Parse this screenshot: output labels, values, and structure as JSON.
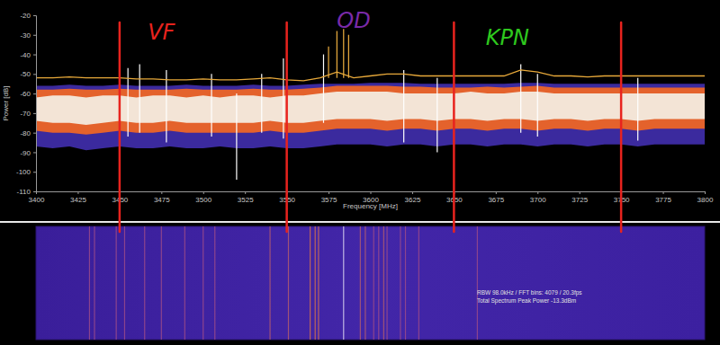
{
  "chart_data": [
    {
      "type": "line",
      "x_label": "Frequency [MHz]",
      "y_label": "Power [dB]",
      "xlim": [
        3400,
        3800
      ],
      "xticks": [
        3400,
        3425,
        3450,
        3475,
        3500,
        3525,
        3550,
        3575,
        3600,
        3625,
        3650,
        3675,
        3700,
        3725,
        3750,
        3775,
        3800
      ],
      "ylim": [
        -110,
        -20
      ],
      "yticks": [
        -110,
        -100,
        -90,
        -80,
        -70,
        -60,
        -50,
        -40,
        -30,
        -20
      ],
      "x": [
        3400,
        3410,
        3420,
        3430,
        3440,
        3450,
        3460,
        3470,
        3480,
        3490,
        3500,
        3510,
        3520,
        3530,
        3540,
        3550,
        3560,
        3570,
        3580,
        3590,
        3600,
        3610,
        3620,
        3630,
        3640,
        3650,
        3660,
        3670,
        3680,
        3690,
        3700,
        3710,
        3720,
        3730,
        3740,
        3750,
        3760,
        3770,
        3780,
        3790,
        3800
      ],
      "series": [
        {
          "type": "area",
          "color": "#3b2a9e",
          "values": [
            -56,
            -56,
            -55.5,
            -56,
            -56,
            -55.5,
            -56,
            -56,
            -56,
            -55.5,
            -56,
            -56,
            -56,
            -55.5,
            -56,
            -56,
            -55.5,
            -55,
            -55,
            -55,
            -54.5,
            -54.5,
            -54.5,
            -55,
            -55,
            -55,
            -55,
            -55,
            -55,
            -54.5,
            -54.5,
            -55,
            -55,
            -55,
            -55,
            -55,
            -55,
            -55,
            -55,
            -55,
            -55
          ],
          "low": [
            -87,
            -88,
            -87,
            -89,
            -88,
            -87,
            -88,
            -88,
            -87,
            -88,
            -88,
            -87,
            -88,
            -88,
            -87,
            -88,
            -88,
            -87,
            -86,
            -86,
            -86,
            -87,
            -86,
            -86,
            -87,
            -86,
            -86,
            -87,
            -86,
            -86,
            -87,
            -86,
            -86,
            -87,
            -86,
            -86,
            -87,
            -86,
            -86,
            -86,
            -86
          ]
        },
        {
          "type": "area",
          "color": "#e4622c",
          "values": [
            -58,
            -58,
            -57.5,
            -58,
            -58,
            -57.5,
            -58,
            -58,
            -58,
            -57.5,
            -58,
            -58,
            -58,
            -57.5,
            -58,
            -58,
            -57.5,
            -57,
            -56,
            -56,
            -56,
            -56,
            -56.5,
            -56.5,
            -57,
            -57,
            -57,
            -56.5,
            -57,
            -56.5,
            -56,
            -57,
            -57,
            -57,
            -57,
            -57,
            -57,
            -57,
            -57,
            -57,
            -57
          ],
          "low": [
            -79,
            -80,
            -80,
            -81,
            -80,
            -79,
            -80,
            -80,
            -79,
            -80,
            -80,
            -80,
            -80,
            -80,
            -79,
            -80,
            -80,
            -79,
            -78,
            -78,
            -78,
            -79,
            -78,
            -78,
            -79,
            -78,
            -78,
            -79,
            -78,
            -78,
            -79,
            -78,
            -78,
            -79,
            -78,
            -78,
            -79,
            -78,
            -78,
            -78,
            -78
          ]
        },
        {
          "type": "area",
          "color": "#f3e4d6",
          "values": [
            -62,
            -61,
            -61,
            -62,
            -61,
            -61,
            -62,
            -61,
            -61,
            -62,
            -61,
            -62,
            -61,
            -61,
            -62,
            -61,
            -61,
            -60,
            -59,
            -59,
            -59,
            -59,
            -60,
            -60,
            -60,
            -60,
            -59,
            -60,
            -60,
            -59,
            -59,
            -60,
            -60,
            -60,
            -60,
            -60,
            -60,
            -60,
            -60,
            -60,
            -60
          ],
          "low": [
            -74,
            -75,
            -75,
            -76,
            -75,
            -74,
            -75,
            -75,
            -74,
            -75,
            -75,
            -75,
            -75,
            -75,
            -74,
            -75,
            -75,
            -74,
            -73,
            -73,
            -73,
            -74,
            -73,
            -73,
            -74,
            -73,
            -73,
            -74,
            -73,
            -73,
            -74,
            -73,
            -73,
            -74,
            -73,
            -73,
            -74,
            -73,
            -73,
            -73,
            -73
          ]
        },
        {
          "type": "stem",
          "color": "#ffffff",
          "x": [
            3455,
            3462,
            3478,
            3505,
            3520,
            3535,
            3548,
            3572,
            3620,
            3640,
            3690,
            3700,
            3760
          ],
          "values": [
            -47,
            -45,
            -48,
            -50,
            -60,
            -50,
            -42,
            -40,
            -48,
            -52,
            -45,
            -50,
            -52
          ],
          "low": [
            -82,
            -80,
            -85,
            -82,
            -104,
            -80,
            -83,
            -75,
            -85,
            -90,
            -80,
            -82,
            -84
          ]
        },
        {
          "type": "line",
          "color": "#e8a93a",
          "values": [
            -52,
            -52,
            -51.5,
            -52,
            -52,
            -52,
            -52.5,
            -52.5,
            -53,
            -53,
            -52.5,
            -53,
            -53,
            -52.5,
            -52,
            -53,
            -53.5,
            -52,
            -49,
            -52,
            -51,
            -50,
            -50,
            -51,
            -51,
            -51,
            -51,
            -51,
            -51,
            -48,
            -49,
            -51,
            -51,
            -51.5,
            -51,
            -51,
            -51,
            -51,
            -51,
            -51,
            -51
          ]
        },
        {
          "type": "stem",
          "color": "#f0b040",
          "x": [
            3575,
            3580,
            3584,
            3587
          ],
          "values": [
            -36,
            -28,
            -27,
            -30
          ],
          "low": [
            -52,
            -52,
            -52,
            -52
          ]
        }
      ],
      "vlines": {
        "x": [
          3450,
          3550,
          3650,
          3750
        ],
        "color": "#e8231e"
      },
      "annotations": [
        {
          "text": "VF",
          "x": 3475,
          "y": -29,
          "color": "#e8231e"
        },
        {
          "text": "OD",
          "x": 3590,
          "y": -23,
          "color": "#7a2aa8"
        },
        {
          "text": "KPN",
          "x": 3682,
          "y": -32,
          "color": "#2ec81e"
        }
      ]
    },
    {
      "type": "waterfall",
      "xlim": [
        3400,
        3800
      ],
      "tick_labels": false,
      "x": [
        3432,
        3435,
        3448,
        3453,
        3465,
        3475,
        3489,
        3500,
        3507,
        3540,
        3551,
        3564,
        3567,
        3569,
        3584,
        3594,
        3597,
        3602,
        3605,
        3608,
        3610,
        3618,
        3621,
        3629,
        3664
      ],
      "colors": [
        "#9a4a8a",
        "#9a4a8a",
        "#9a4a8a",
        "#9a4a8a",
        "#9a4a8a",
        "#9a4a8a",
        "#9a4a8a",
        "#9a4a8a",
        "#9a4a8a",
        "#b05a70",
        "#b05a70",
        "#d07050",
        "#d07050",
        "#d07050",
        "#d8d0f0",
        "#b05a70",
        "#b05a70",
        "#9a4a8a",
        "#9a4a8a",
        "#b05a70",
        "#9a4a8a",
        "#9a4a8a",
        "#9a4a8a",
        "#9a4a8a",
        "#9a4a8a"
      ],
      "annotations": [
        {
          "text": "RBW 98.0kHz / FFT bins: 4079 / 20.3fps"
        },
        {
          "text": "Total Spectrum Peak Power -13.3dBm"
        }
      ]
    }
  ]
}
